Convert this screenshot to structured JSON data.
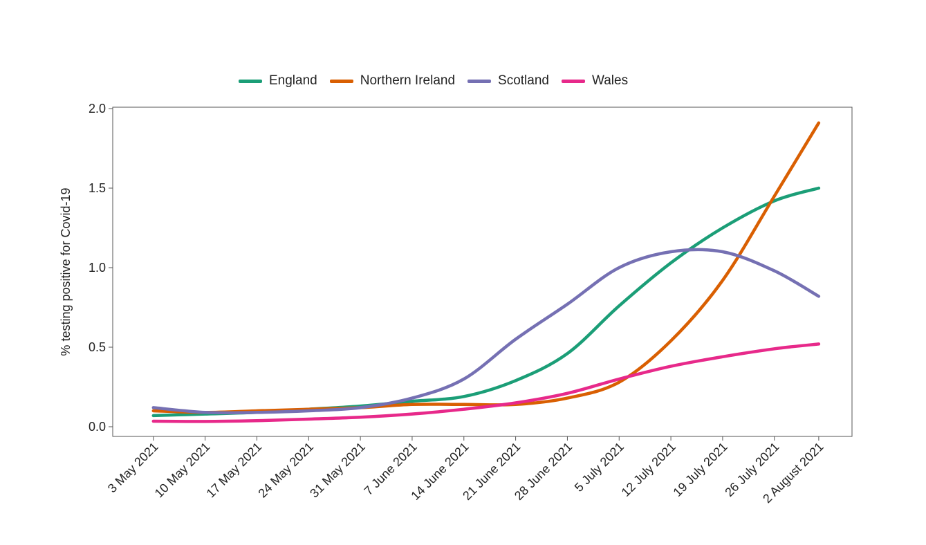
{
  "chart_data": {
    "type": "line",
    "title": "",
    "xlabel": "",
    "ylabel": "% testing positive for Covid-19",
    "ylim": [
      0.0,
      2.0
    ],
    "yticks": [
      "0.0",
      "0.5",
      "1.0",
      "1.5",
      "2.0"
    ],
    "ytick_values": [
      0.0,
      0.5,
      1.0,
      1.5,
      2.0
    ],
    "legend_position": "top",
    "grid": false,
    "xticks": [
      "3 May 2021",
      "10 May 2021",
      "17 May 2021",
      "24  May 2021",
      "31 May 2021",
      "7 June 2021",
      "14 June 2021",
      "21 June 2021",
      "28 June 2021",
      "5 July 2021",
      "12 July 2021",
      "19 July 2021",
      "26 July 2021",
      "2 August 2021"
    ],
    "x": [
      0,
      7,
      14,
      21,
      28,
      35,
      42,
      49,
      56,
      63,
      70,
      77,
      84,
      90
    ],
    "xlim": [
      -5.5,
      94.5
    ],
    "series": [
      {
        "name": "England",
        "color": "#1b9e77",
        "values": [
          0.07,
          0.08,
          0.09,
          0.11,
          0.13,
          0.16,
          0.19,
          0.29,
          0.46,
          0.76,
          1.03,
          1.25,
          1.42,
          1.5
        ]
      },
      {
        "name": "Northern Ireland",
        "color": "#d95f02",
        "values": [
          0.1,
          0.09,
          0.1,
          0.11,
          0.12,
          0.14,
          0.14,
          0.14,
          0.18,
          0.28,
          0.54,
          0.92,
          1.45,
          1.91
        ]
      },
      {
        "name": "Scotland",
        "color": "#7570b3",
        "values": [
          0.12,
          0.09,
          0.09,
          0.1,
          0.12,
          0.18,
          0.3,
          0.55,
          0.77,
          1.0,
          1.1,
          1.1,
          0.98,
          0.82
        ]
      },
      {
        "name": "Wales",
        "color": "#e7298a",
        "values": [
          0.035,
          0.033,
          0.038,
          0.048,
          0.06,
          0.08,
          0.11,
          0.15,
          0.21,
          0.3,
          0.38,
          0.44,
          0.49,
          0.52
        ]
      }
    ]
  }
}
